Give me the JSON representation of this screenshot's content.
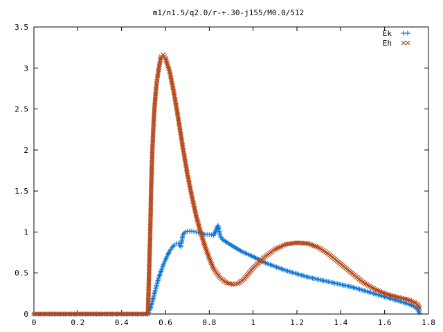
{
  "chart_data": {
    "type": "scatter",
    "title": "m1/n1.5/q2.0/r-+.30-j155/M0.0/512",
    "xlabel": "",
    "ylabel": "",
    "xlim": [
      0,
      1.8
    ],
    "ylim": [
      0,
      3.5
    ],
    "x_ticks": [
      "0",
      "0.2",
      "0.4",
      "0.6",
      "0.8",
      "1",
      "1.2",
      "1.4",
      "1.6",
      "1.8"
    ],
    "y_ticks": [
      "0",
      "0.5",
      "1",
      "1.5",
      "2",
      "2.5",
      "3",
      "3.5"
    ],
    "grid": false,
    "legend_position": "top-right",
    "series": [
      {
        "name": "Ek",
        "marker": "plus",
        "color": "#0a74d6",
        "x": [
          0.0,
          0.1,
          0.2,
          0.3,
          0.4,
          0.5,
          0.52,
          0.53,
          0.54,
          0.55,
          0.56,
          0.57,
          0.58,
          0.59,
          0.6,
          0.61,
          0.62,
          0.63,
          0.64,
          0.65,
          0.66,
          0.67,
          0.68,
          0.69,
          0.7,
          0.72,
          0.74,
          0.76,
          0.78,
          0.8,
          0.82,
          0.84,
          0.85,
          0.86,
          0.9,
          0.95,
          1.0,
          1.05,
          1.1,
          1.15,
          1.2,
          1.25,
          1.3,
          1.35,
          1.4,
          1.45,
          1.5,
          1.55,
          1.6,
          1.65,
          1.7,
          1.73,
          1.75,
          1.76
        ],
        "y": [
          0.0,
          0.0,
          0.0,
          0.0,
          0.0,
          0.0,
          0.0,
          0.06,
          0.15,
          0.25,
          0.35,
          0.45,
          0.52,
          0.6,
          0.66,
          0.72,
          0.77,
          0.81,
          0.84,
          0.86,
          0.86,
          0.82,
          0.97,
          1.0,
          1.01,
          1.01,
          1.0,
          0.99,
          0.97,
          0.97,
          0.96,
          1.08,
          0.95,
          0.91,
          0.84,
          0.76,
          0.7,
          0.63,
          0.58,
          0.53,
          0.49,
          0.45,
          0.42,
          0.39,
          0.36,
          0.33,
          0.29,
          0.25,
          0.21,
          0.17,
          0.13,
          0.1,
          0.06,
          0.01
        ]
      },
      {
        "name": "Eh",
        "marker": "cross",
        "color": "#b5471a",
        "x": [
          0.0,
          0.1,
          0.2,
          0.3,
          0.4,
          0.5,
          0.52,
          0.53,
          0.535,
          0.54,
          0.545,
          0.55,
          0.555,
          0.56,
          0.57,
          0.58,
          0.59,
          0.6,
          0.62,
          0.64,
          0.66,
          0.68,
          0.7,
          0.72,
          0.74,
          0.76,
          0.78,
          0.8,
          0.82,
          0.85,
          0.88,
          0.91,
          0.93,
          0.96,
          1.0,
          1.05,
          1.1,
          1.15,
          1.2,
          1.25,
          1.3,
          1.35,
          1.4,
          1.45,
          1.5,
          1.55,
          1.6,
          1.65,
          1.7,
          1.73,
          1.75,
          1.76
        ],
        "y": [
          0.0,
          0.0,
          0.0,
          0.0,
          0.0,
          0.0,
          0.0,
          0.92,
          1.55,
          1.97,
          2.28,
          2.51,
          2.68,
          2.82,
          3.0,
          3.14,
          3.16,
          3.12,
          2.95,
          2.68,
          2.36,
          2.02,
          1.71,
          1.44,
          1.2,
          1.0,
          0.83,
          0.68,
          0.55,
          0.44,
          0.38,
          0.36,
          0.37,
          0.43,
          0.56,
          0.69,
          0.79,
          0.85,
          0.87,
          0.86,
          0.81,
          0.72,
          0.61,
          0.5,
          0.39,
          0.31,
          0.25,
          0.21,
          0.18,
          0.15,
          0.12,
          0.07
        ]
      }
    ]
  }
}
